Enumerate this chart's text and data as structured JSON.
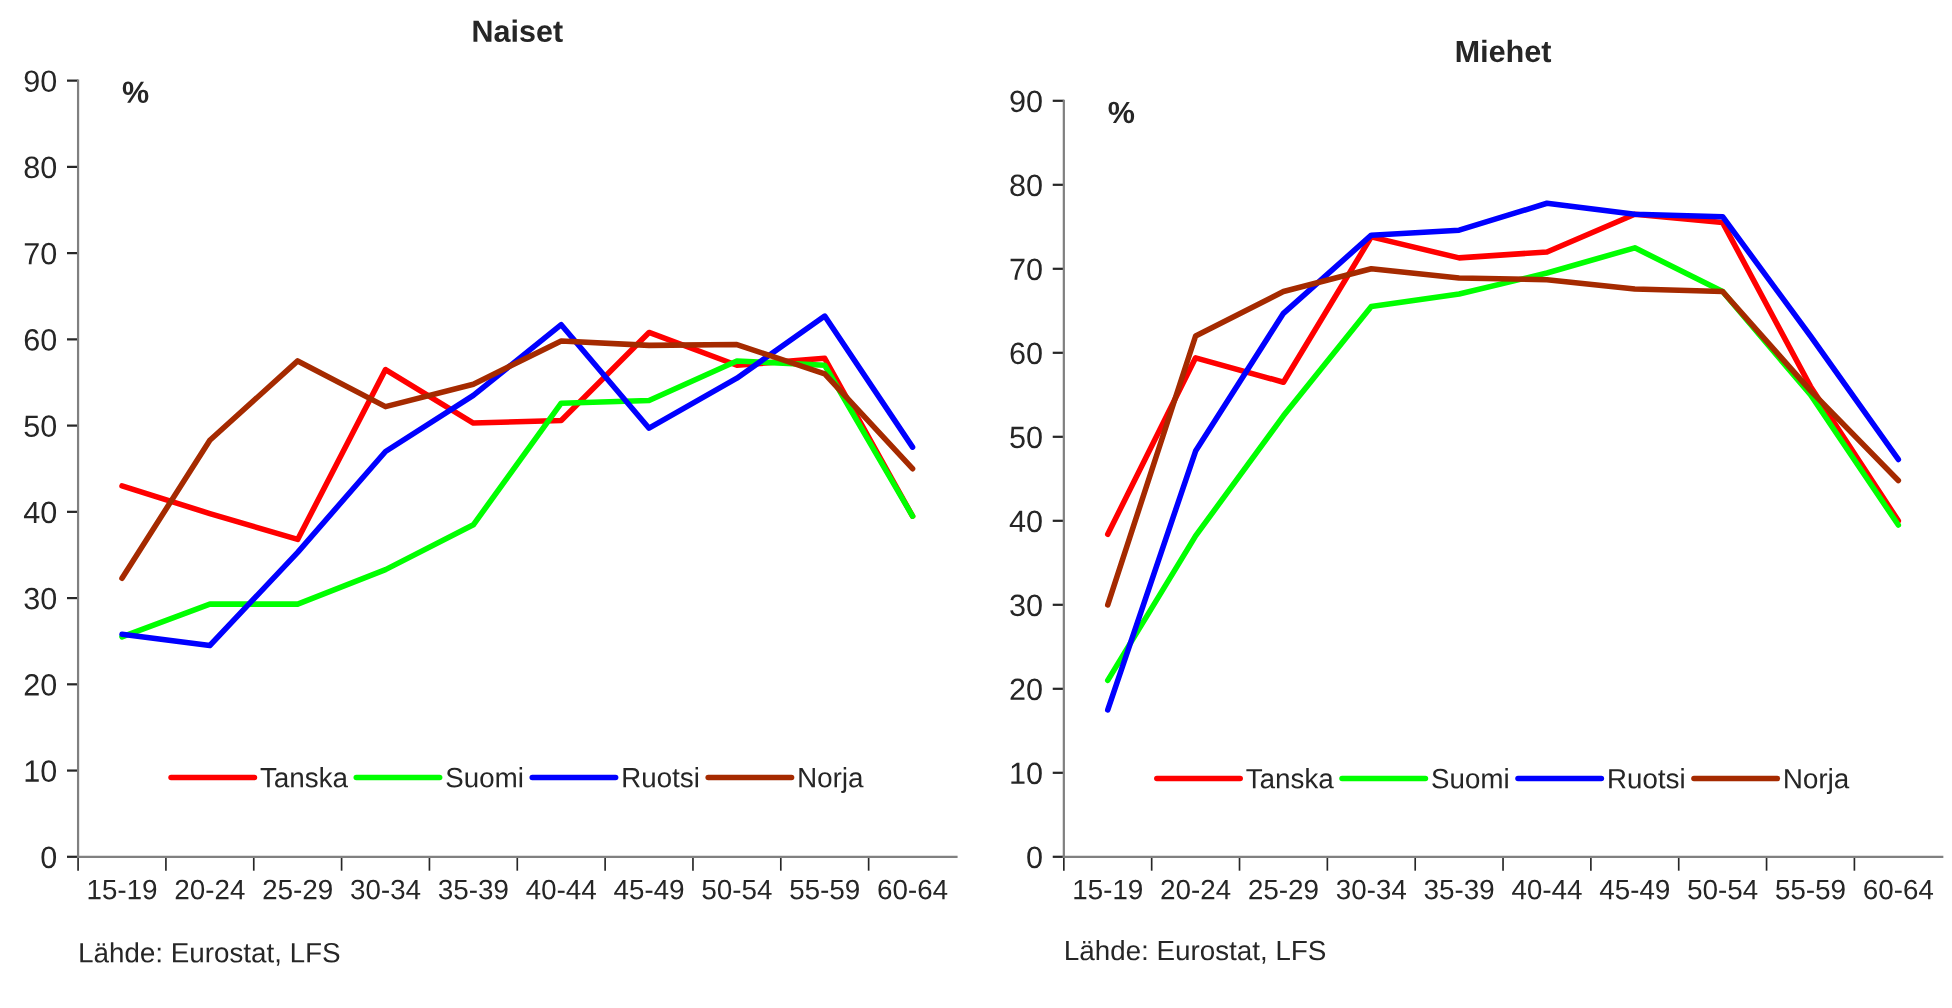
{
  "chart_data": [
    {
      "type": "line",
      "title": "Naiset",
      "ylabel": "%",
      "categories": [
        "15-19",
        "20-24",
        "25-29",
        "30-34",
        "35-39",
        "40-44",
        "45-49",
        "50-54",
        "55-59",
        "60-64"
      ],
      "ylim": [
        0,
        90
      ],
      "yticks": [
        0,
        10,
        20,
        30,
        40,
        50,
        60,
        70,
        80,
        90
      ],
      "grid": false,
      "legend": "bottom",
      "marker": "none",
      "line_style": "solid",
      "annotations": [
        "Lähde: Eurostat, LFS"
      ],
      "series": [
        {
          "name": "Tanska",
          "color": "#ff0000",
          "values": [
            43,
            39.8,
            36.8,
            56.5,
            50.3,
            50.6,
            60.8,
            57,
            57.8,
            39.5
          ]
        },
        {
          "name": "Suomi",
          "color": "#00ff00",
          "values": [
            25.5,
            29.3,
            29.3,
            33.3,
            38.5,
            52.6,
            52.9,
            57.5,
            57,
            39.5
          ]
        },
        {
          "name": "Ruotsi",
          "color": "#0000ff",
          "values": [
            25.8,
            24.5,
            35.3,
            47,
            53.5,
            61.7,
            49.7,
            55.5,
            62.7,
            47.5
          ]
        },
        {
          "name": "Norja",
          "color": "#a52a00",
          "values": [
            32.3,
            48.3,
            57.5,
            52.2,
            54.8,
            59.8,
            59.3,
            59.4,
            56,
            45
          ]
        }
      ]
    },
    {
      "type": "line",
      "title": "Miehet",
      "ylabel": "%",
      "categories": [
        "15-19",
        "20-24",
        "25-29",
        "30-34",
        "35-39",
        "40-44",
        "45-49",
        "50-54",
        "55-59",
        "60-64"
      ],
      "ylim": [
        0,
        90
      ],
      "yticks": [
        0,
        10,
        20,
        30,
        40,
        50,
        60,
        70,
        80,
        90
      ],
      "grid": false,
      "legend": "bottom",
      "marker": "none",
      "line_style": "solid",
      "annotations": [
        "Lähde: Eurostat, LFS"
      ],
      "series": [
        {
          "name": "Tanska",
          "color": "#ff0000",
          "values": [
            38.4,
            59.4,
            56.5,
            73.8,
            71.3,
            72,
            76.5,
            75.5,
            56,
            40
          ]
        },
        {
          "name": "Suomi",
          "color": "#00ff00",
          "values": [
            21,
            38.2,
            52.5,
            65.5,
            67,
            69.5,
            72.5,
            67.3,
            55,
            39.5
          ]
        },
        {
          "name": "Ruotsi",
          "color": "#0000ff",
          "values": [
            17.5,
            48.3,
            64.7,
            74,
            74.6,
            77.8,
            76.5,
            76.2,
            62,
            47.3
          ]
        },
        {
          "name": "Norja",
          "color": "#a52a00",
          "values": [
            30,
            62,
            67.3,
            70,
            68.9,
            68.7,
            67.6,
            67.3,
            55.5,
            44.8
          ]
        }
      ]
    }
  ]
}
